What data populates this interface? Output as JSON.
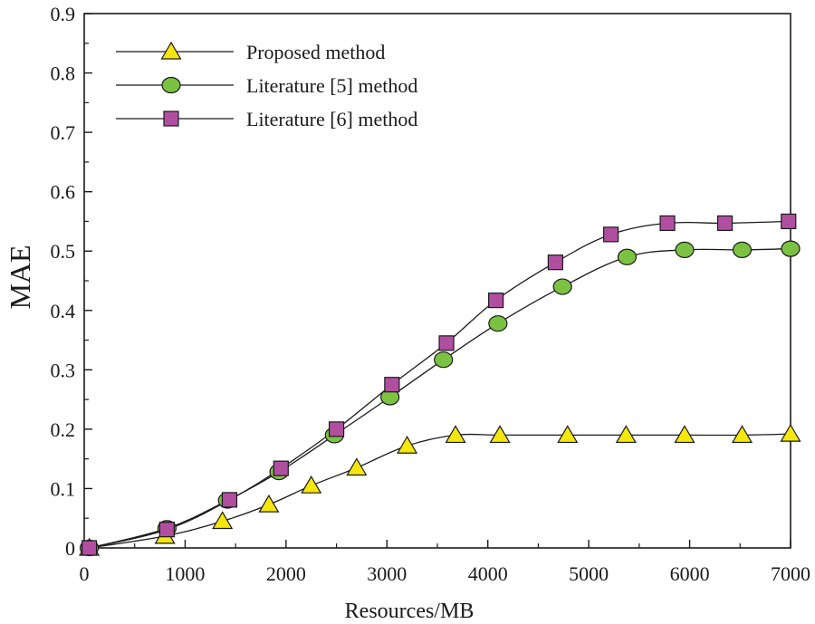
{
  "chart_data": {
    "type": "line",
    "title": "",
    "xlabel": "Resources/MB",
    "ylabel": "MAE",
    "xlim": [
      0,
      7000
    ],
    "ylim": [
      0,
      0.9
    ],
    "xticks": [
      0,
      1000,
      2000,
      3000,
      4000,
      5000,
      6000,
      7000
    ],
    "yticks": [
      0,
      0.1,
      0.2,
      0.3,
      0.4,
      0.5,
      0.6,
      0.7,
      0.8,
      0.9
    ],
    "xtick_labels": [
      "0",
      "1000",
      "2000",
      "3000",
      "4000",
      "5000",
      "6000",
      "7000"
    ],
    "ytick_labels": [
      "0",
      "0.1",
      "0.2",
      "0.3",
      "0.4",
      "0.5",
      "0.6",
      "0.7",
      "0.8",
      "0.9"
    ],
    "grid": false,
    "legend_position": "top-left",
    "series": [
      {
        "name": "Proposed method",
        "marker": "triangle",
        "color": "#f5e60c",
        "x": [
          50,
          800,
          1370,
          1830,
          2250,
          2700,
          3200,
          3680,
          4120,
          4790,
          5370,
          5950,
          6520,
          7000
        ],
        "y": [
          0.0,
          0.02,
          0.045,
          0.073,
          0.105,
          0.135,
          0.172,
          0.19,
          0.19,
          0.19,
          0.19,
          0.19,
          0.19,
          0.192
        ]
      },
      {
        "name": "Literature [5] method",
        "marker": "circle",
        "color": "#7cc242",
        "x": [
          50,
          820,
          1420,
          1930,
          2480,
          3030,
          3560,
          4100,
          4740,
          5380,
          5950,
          6520,
          7000
        ],
        "y": [
          0.0,
          0.033,
          0.08,
          0.128,
          0.19,
          0.254,
          0.317,
          0.378,
          0.44,
          0.49,
          0.502,
          0.502,
          0.504
        ]
      },
      {
        "name": "Literature [6] method",
        "marker": "square",
        "color": "#b04fa0",
        "x": [
          50,
          820,
          1440,
          1950,
          2500,
          3050,
          3590,
          4080,
          4670,
          5220,
          5780,
          6350,
          6980
        ],
        "y": [
          0.0,
          0.031,
          0.081,
          0.134,
          0.2,
          0.275,
          0.345,
          0.417,
          0.481,
          0.528,
          0.547,
          0.547,
          0.55
        ]
      }
    ]
  }
}
